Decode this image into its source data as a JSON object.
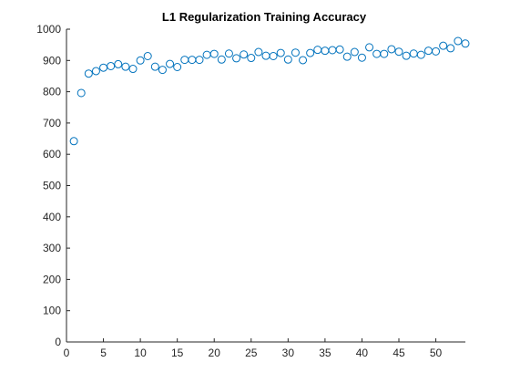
{
  "chart_data": {
    "type": "scatter",
    "title": "L1 Regularization Training Accuracy",
    "xlabel": "",
    "ylabel": "",
    "xlim": [
      0,
      54
    ],
    "ylim": [
      0,
      1000
    ],
    "xticks": [
      0,
      5,
      10,
      15,
      20,
      25,
      30,
      35,
      40,
      45,
      50
    ],
    "yticks": [
      0,
      100,
      200,
      300,
      400,
      500,
      600,
      700,
      800,
      900,
      1000
    ],
    "grid": false,
    "marker": "circle",
    "marker_color": "#0072BD",
    "series": [
      {
        "x": [
          1,
          2,
          3,
          4,
          5,
          6,
          7,
          8,
          9,
          10,
          11,
          12,
          13,
          14,
          15,
          16,
          17,
          18,
          19,
          20,
          21,
          22,
          23,
          24,
          25,
          26,
          27,
          28,
          29,
          30,
          31,
          32,
          33,
          34,
          35,
          36,
          37,
          38,
          39,
          40,
          41,
          42,
          43,
          44,
          45,
          46,
          47,
          48,
          49,
          50,
          51,
          52,
          53,
          54
        ],
        "y": [
          642,
          796,
          858,
          866,
          877,
          882,
          888,
          880,
          873,
          900,
          914,
          880,
          870,
          889,
          879,
          902,
          902,
          902,
          918,
          921,
          903,
          922,
          907,
          919,
          908,
          927,
          915,
          914,
          924,
          903,
          925,
          901,
          924,
          934,
          931,
          933,
          935,
          912,
          927,
          909,
          942,
          921,
          921,
          936,
          928,
          915,
          922,
          918,
          931,
          929,
          947,
          939,
          962,
          954
        ]
      }
    ]
  }
}
